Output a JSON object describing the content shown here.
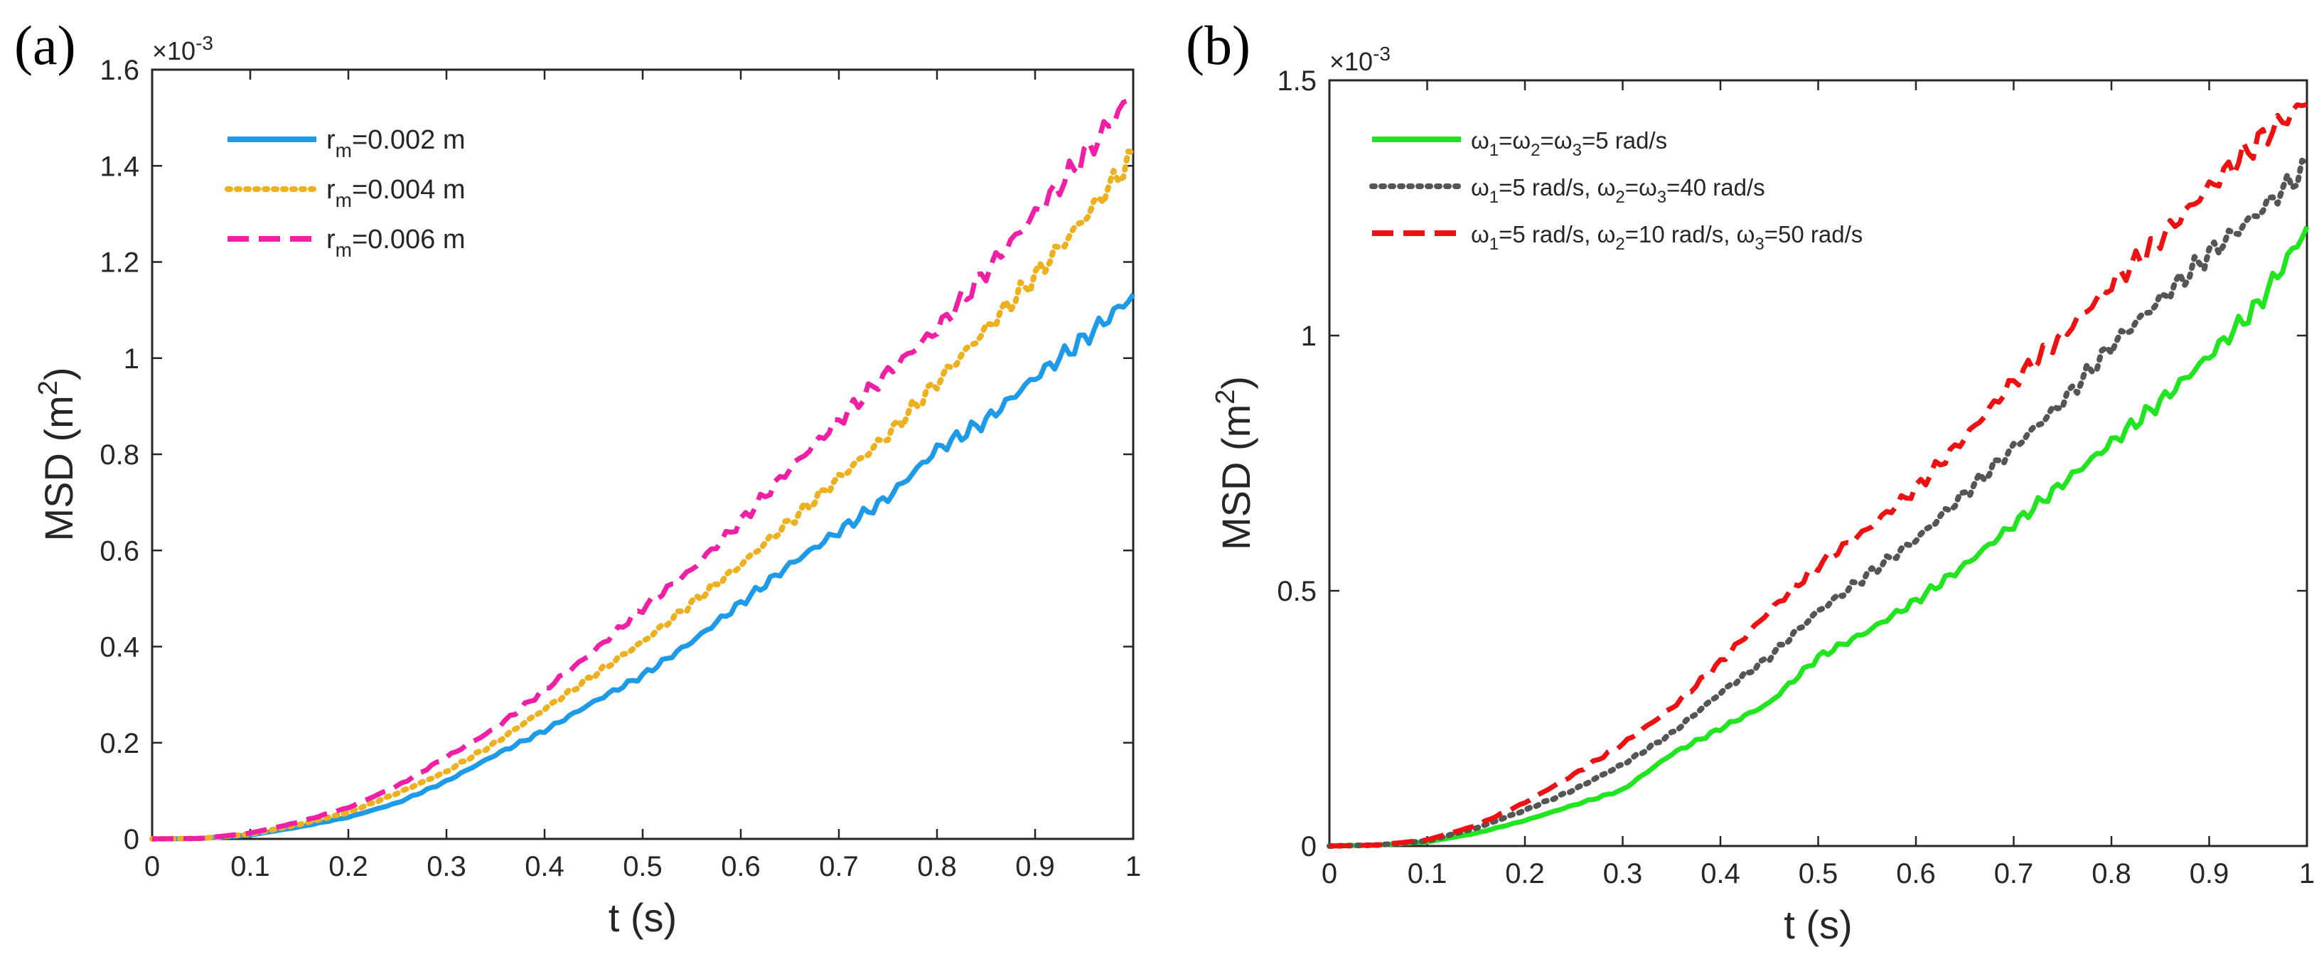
{
  "figure_labels": {
    "a": "(a)",
    "b": "(b)"
  },
  "chart_data": [
    {
      "type": "line",
      "panel": "(a)",
      "xlabel": "t (s)",
      "ylabel_main": "MSD (m",
      "ylabel_sup": "2",
      "ylabel_close": ")",
      "exponent_base": "×10",
      "exponent_power": "-3",
      "xlim": [
        0,
        1
      ],
      "ylim": [
        0,
        1.6
      ],
      "xticks": [
        0,
        0.1,
        0.2,
        0.3,
        0.4,
        0.5,
        0.6,
        0.7,
        0.8,
        0.9,
        1
      ],
      "xtick_labels": [
        "0",
        "0.1",
        "0.2",
        "0.3",
        "0.4",
        "0.5",
        "0.6",
        "0.7",
        "0.8",
        "0.9",
        "1"
      ],
      "yticks": [
        0,
        0.2,
        0.4,
        0.6,
        0.8,
        1,
        1.2,
        1.4,
        1.6
      ],
      "ytick_labels": [
        "0",
        "0.2",
        "0.4",
        "0.6",
        "0.8",
        "1",
        "1.2",
        "1.4",
        "1.6"
      ],
      "legend_position": "top-left",
      "x": [
        0,
        0.05,
        0.1,
        0.15,
        0.2,
        0.25,
        0.3,
        0.35,
        0.4,
        0.45,
        0.5,
        0.55,
        0.6,
        0.65,
        0.7,
        0.75,
        0.8,
        0.85,
        0.9,
        0.95,
        1.0
      ],
      "series": [
        {
          "name": "r_m=0.002 m",
          "legend_main": "r",
          "legend_sub": "m",
          "legend_rest": "=0.002 m",
          "color": "#1E9BE8",
          "style": "solid",
          "values": [
            0,
            0.001,
            0.008,
            0.025,
            0.045,
            0.075,
            0.12,
            0.175,
            0.225,
            0.285,
            0.34,
            0.41,
            0.49,
            0.57,
            0.64,
            0.71,
            0.81,
            0.87,
            0.96,
            1.04,
            1.13
          ]
        },
        {
          "name": "r_m=0.004 m",
          "legend_main": "r",
          "legend_sub": "m",
          "legend_rest": "=0.004 m",
          "color": "#EDB120",
          "style": "dotted",
          "values": [
            0,
            0.001,
            0.01,
            0.03,
            0.055,
            0.095,
            0.14,
            0.2,
            0.27,
            0.34,
            0.41,
            0.49,
            0.57,
            0.66,
            0.75,
            0.84,
            0.95,
            1.06,
            1.17,
            1.29,
            1.42
          ]
        },
        {
          "name": "r_m=0.006 m",
          "legend_main": "r",
          "legend_sub": "m",
          "legend_rest": "=0.006 m",
          "color": "#F01FA6",
          "style": "dashed",
          "values": [
            0,
            0.001,
            0.012,
            0.035,
            0.065,
            0.11,
            0.17,
            0.23,
            0.31,
            0.39,
            0.48,
            0.56,
            0.66,
            0.77,
            0.87,
            0.97,
            1.06,
            1.18,
            1.3,
            1.42,
            1.55
          ]
        }
      ]
    },
    {
      "type": "line",
      "panel": "(b)",
      "xlabel": "t (s)",
      "ylabel_main": "MSD (m",
      "ylabel_sup": "2",
      "ylabel_close": ")",
      "exponent_base": "×10",
      "exponent_power": "-3",
      "xlim": [
        0,
        1
      ],
      "ylim": [
        0,
        1.5
      ],
      "xticks": [
        0,
        0.1,
        0.2,
        0.3,
        0.4,
        0.5,
        0.6,
        0.7,
        0.8,
        0.9,
        1
      ],
      "xtick_labels": [
        "0",
        "0.1",
        "0.2",
        "0.3",
        "0.4",
        "0.5",
        "0.6",
        "0.7",
        "0.8",
        "0.9",
        "1"
      ],
      "yticks": [
        0,
        0.5,
        1,
        1.5
      ],
      "ytick_labels": [
        "0",
        "0.5",
        "1",
        "1.5"
      ],
      "legend_position": "top-left",
      "x": [
        0,
        0.05,
        0.1,
        0.15,
        0.2,
        0.25,
        0.3,
        0.35,
        0.4,
        0.45,
        0.5,
        0.55,
        0.6,
        0.65,
        0.7,
        0.75,
        0.8,
        0.85,
        0.9,
        0.95,
        1.0
      ],
      "series": [
        {
          "name": "ω1=ω2=ω3=5 rad/s",
          "legend_parts": [
            {
              "t": "ω"
            },
            {
              "s": "1"
            },
            {
              "t": "=ω"
            },
            {
              "s": "2"
            },
            {
              "t": "=ω"
            },
            {
              "s": "3"
            },
            {
              "t": "=5 rad/s"
            }
          ],
          "color": "#21E521",
          "style": "solid",
          "values": [
            0,
            0.002,
            0.008,
            0.025,
            0.05,
            0.08,
            0.11,
            0.18,
            0.23,
            0.28,
            0.37,
            0.42,
            0.48,
            0.55,
            0.63,
            0.71,
            0.79,
            0.87,
            0.96,
            1.06,
            1.21
          ]
        },
        {
          "name": "ω1=5 rad/s, ω2=ω3=40 rad/s",
          "legend_parts": [
            {
              "t": "ω"
            },
            {
              "s": "1"
            },
            {
              "t": "=5 rad/s, ω"
            },
            {
              "s": "2"
            },
            {
              "t": "=ω"
            },
            {
              "s": "3"
            },
            {
              "t": "=40 rad/s"
            }
          ],
          "color": "#555555",
          "style": "dotted",
          "values": [
            0,
            0.002,
            0.01,
            0.035,
            0.07,
            0.11,
            0.16,
            0.22,
            0.3,
            0.37,
            0.46,
            0.53,
            0.6,
            0.69,
            0.78,
            0.87,
            0.98,
            1.07,
            1.16,
            1.24,
            1.33
          ]
        },
        {
          "name": "ω1=5 rad/s, ω2=10 rad/s, ω3=50 rad/s",
          "legend_parts": [
            {
              "t": "ω"
            },
            {
              "s": "1"
            },
            {
              "t": "=5 rad/s, ω"
            },
            {
              "s": "2"
            },
            {
              "t": "=10 rad/s, ω"
            },
            {
              "s": "3"
            },
            {
              "t": "=50 rad/s"
            }
          ],
          "color": "#EE1111",
          "style": "dashed",
          "values": [
            0,
            0.002,
            0.012,
            0.04,
            0.085,
            0.14,
            0.2,
            0.27,
            0.36,
            0.46,
            0.55,
            0.62,
            0.7,
            0.8,
            0.91,
            1.0,
            1.1,
            1.19,
            1.29,
            1.38,
            1.46
          ]
        }
      ]
    }
  ]
}
